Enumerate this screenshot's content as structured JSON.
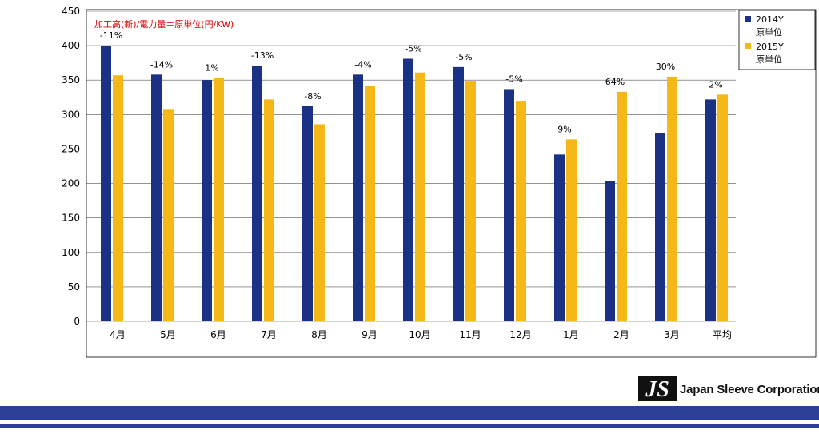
{
  "chart_data": {
    "type": "bar",
    "title": "加工高(新)/電力量＝原単位(円/KW)",
    "categories": [
      "4月",
      "5月",
      "6月",
      "7月",
      "8月",
      "9月",
      "10月",
      "11月",
      "12月",
      "1月",
      "2月",
      "3月",
      "平均"
    ],
    "series": [
      {
        "name": "2014Y 原単位",
        "color": "#1b3284",
        "values": [
          400,
          358,
          350,
          371,
          312,
          358,
          381,
          369,
          337,
          242,
          203,
          273,
          322
        ]
      },
      {
        "name": "2015Y 原単位",
        "color": "#f5b816",
        "values": [
          357,
          307,
          353,
          322,
          286,
          342,
          361,
          349,
          320,
          264,
          333,
          355,
          329
        ]
      }
    ],
    "annotations": [
      "-11%",
      "-14%",
      "1%",
      "-13%",
      "-8%",
      "-4%",
      "-5%",
      "-5%",
      "-5%",
      "9%",
      "64%",
      "30%",
      "2%"
    ],
    "yticks": [
      0,
      50,
      100,
      150,
      200,
      250,
      300,
      350,
      400,
      450
    ],
    "ylim": [
      0,
      450
    ],
    "grid": true,
    "legend_position": "top-right",
    "xlabel": "",
    "ylabel": ""
  },
  "logo": {
    "mark": "JS",
    "company": "Japan Sleeve Corporation"
  }
}
